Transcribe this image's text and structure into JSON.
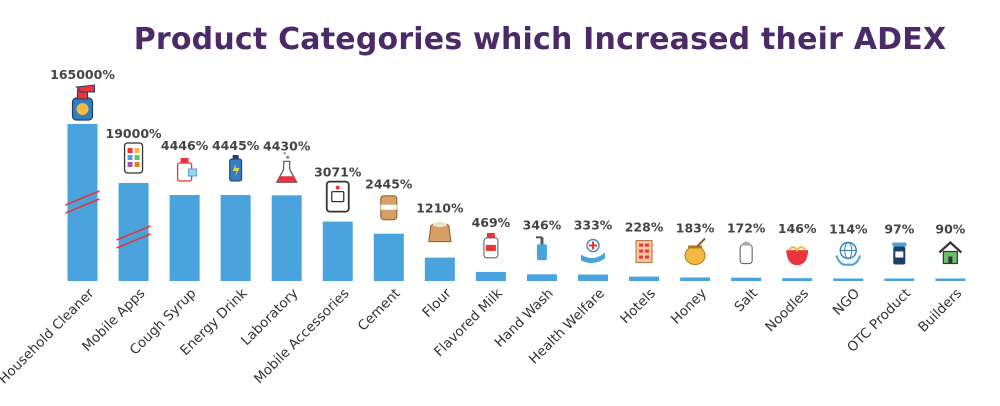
{
  "colors": {
    "title": "#4b2a67",
    "bar": "#4aa3dc",
    "break_mark": "#e8343a"
  },
  "chart_data": {
    "type": "bar",
    "title": "Product Categories which Increased their ADEX",
    "xlabel": "",
    "ylabel": "",
    "ylim": [
      0,
      6000
    ],
    "grid": false,
    "axis_break_on": [
      "Household Cleaner",
      "Mobile Apps"
    ],
    "categories": [
      "Household Cleaner",
      "Mobile Apps",
      "Cough Syrup",
      "Energy Drink",
      "Laboratory",
      "Mobile Accessories",
      "Cement",
      "Flour",
      "Flavored Milk",
      "Hand Wash",
      "Health Welfare",
      "Hotels",
      "Honey",
      "Salt",
      "Noodles",
      "NGO",
      "OTC Product",
      "Builders"
    ],
    "values": [
      165000,
      19000,
      4446,
      4445,
      4430,
      3071,
      2445,
      1210,
      469,
      346,
      333,
      228,
      183,
      172,
      146,
      114,
      97,
      90
    ],
    "value_labels": [
      "165000%",
      "19000%",
      "4446%",
      "4445%",
      "4430%",
      "3071%",
      "2445%",
      "1210%",
      "469%",
      "346%",
      "333%",
      "228%",
      "183%",
      "172%",
      "146%",
      "114%",
      "97%",
      "90%"
    ],
    "icons": [
      "spray-bottle-icon",
      "smartphone-apps-icon",
      "syrup-bottle-icon",
      "energy-drink-can-icon",
      "lab-flask-icon",
      "phone-accessory-icon",
      "cement-bag-icon",
      "flour-sack-icon",
      "milk-bottle-icon",
      "hand-wash-dispenser-icon",
      "health-hand-icon",
      "hotel-building-icon",
      "honey-pot-icon",
      "salt-shaker-icon",
      "noodle-bowl-icon",
      "globe-hands-icon",
      "medicine-jar-icon",
      "house-icon"
    ]
  }
}
